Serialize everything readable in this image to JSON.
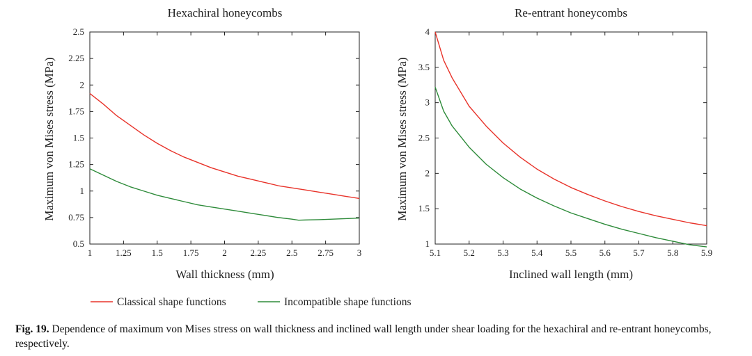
{
  "chart_data": [
    {
      "type": "line",
      "title": "Hexachiral honeycombs",
      "xlabel": "Wall thickness (mm)",
      "ylabel": "Maximum von Mises stress (MPa)",
      "xlim": [
        1,
        3
      ],
      "ylim": [
        0.5,
        2.5
      ],
      "xticks": [
        "1",
        "1.25",
        "1.5",
        "1.75",
        "2",
        "2.25",
        "2.5",
        "2.75",
        "3"
      ],
      "yticks": [
        "0.5",
        "0.75",
        "1",
        "1.25",
        "1.5",
        "1.75",
        "2",
        "2.25",
        "2.5"
      ],
      "series": [
        {
          "name": "Classical shape functions",
          "color": "#e8332a",
          "x": [
            1.0,
            1.1,
            1.2,
            1.3,
            1.4,
            1.5,
            1.6,
            1.7,
            1.8,
            1.9,
            2.0,
            2.1,
            2.2,
            2.3,
            2.4,
            2.5,
            2.6,
            2.7,
            2.8,
            2.9,
            3.0
          ],
          "y": [
            1.92,
            1.82,
            1.71,
            1.62,
            1.53,
            1.45,
            1.38,
            1.32,
            1.27,
            1.22,
            1.18,
            1.14,
            1.11,
            1.08,
            1.05,
            1.03,
            1.01,
            0.99,
            0.97,
            0.95,
            0.93
          ]
        },
        {
          "name": "Incompatible shape functions",
          "color": "#2e8b3a",
          "x": [
            1.0,
            1.1,
            1.2,
            1.3,
            1.4,
            1.5,
            1.6,
            1.7,
            1.8,
            1.9,
            2.0,
            2.1,
            2.2,
            2.3,
            2.4,
            2.5,
            2.55,
            2.6,
            2.7,
            2.8,
            2.9,
            3.0
          ],
          "y": [
            1.21,
            1.15,
            1.09,
            1.04,
            1.0,
            0.96,
            0.93,
            0.9,
            0.87,
            0.85,
            0.83,
            0.81,
            0.79,
            0.77,
            0.75,
            0.735,
            0.725,
            0.727,
            0.73,
            0.735,
            0.74,
            0.745
          ]
        }
      ]
    },
    {
      "type": "line",
      "title": "Re-entrant honeycombs",
      "xlabel": "Inclined wall length (mm)",
      "ylabel": "Maximum von Mises stress (MPa)",
      "xlim": [
        5.1,
        5.9
      ],
      "ylim": [
        1,
        4
      ],
      "xticks": [
        "5.1",
        "5.2",
        "5.3",
        "5.4",
        "5.5",
        "5.6",
        "5.7",
        "5.8",
        "5.9"
      ],
      "yticks": [
        "1",
        "1.5",
        "2",
        "2.5",
        "3",
        "3.5",
        "4"
      ],
      "series": [
        {
          "name": "Classical shape functions",
          "color": "#e8332a",
          "x": [
            5.1,
            5.125,
            5.15,
            5.2,
            5.25,
            5.3,
            5.35,
            5.4,
            5.45,
            5.5,
            5.55,
            5.6,
            5.65,
            5.7,
            5.75,
            5.8,
            5.85,
            5.9
          ],
          "y": [
            4.0,
            3.6,
            3.35,
            2.95,
            2.67,
            2.43,
            2.23,
            2.06,
            1.92,
            1.8,
            1.7,
            1.61,
            1.53,
            1.46,
            1.4,
            1.35,
            1.3,
            1.26
          ]
        },
        {
          "name": "Incompatible shape functions",
          "color": "#2e8b3a",
          "x": [
            5.1,
            5.125,
            5.15,
            5.2,
            5.25,
            5.3,
            5.35,
            5.4,
            5.45,
            5.5,
            5.55,
            5.6,
            5.65,
            5.7,
            5.75,
            5.8,
            5.85,
            5.9
          ],
          "y": [
            3.22,
            2.88,
            2.67,
            2.37,
            2.13,
            1.94,
            1.78,
            1.65,
            1.54,
            1.44,
            1.36,
            1.28,
            1.21,
            1.15,
            1.09,
            1.04,
            0.99,
            0.96
          ]
        }
      ]
    }
  ],
  "legend": {
    "items": [
      {
        "label": "Classical shape functions",
        "color": "#e8332a"
      },
      {
        "label": "Incompatible shape functions",
        "color": "#2e8b3a"
      }
    ]
  },
  "caption": {
    "label": "Fig. 19.",
    "text": "Dependence of maximum von Mises stress on wall thickness and inclined wall length under shear loading for the hexachiral and re-entrant honeycombs, respectively."
  }
}
